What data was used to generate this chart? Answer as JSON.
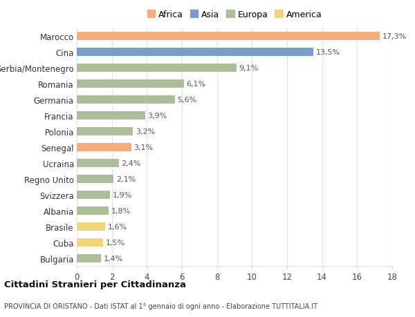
{
  "countries": [
    "Marocco",
    "Cina",
    "Serbia/Montenegro",
    "Romania",
    "Germania",
    "Francia",
    "Polonia",
    "Senegal",
    "Ucraina",
    "Regno Unito",
    "Svizzera",
    "Albania",
    "Brasile",
    "Cuba",
    "Bulgaria"
  ],
  "values": [
    17.3,
    13.5,
    9.1,
    6.1,
    5.6,
    3.9,
    3.2,
    3.1,
    2.4,
    2.1,
    1.9,
    1.8,
    1.6,
    1.5,
    1.4
  ],
  "labels": [
    "17,3%",
    "13,5%",
    "9,1%",
    "6,1%",
    "5,6%",
    "3,9%",
    "3,2%",
    "3,1%",
    "2,4%",
    "2,1%",
    "1,9%",
    "1,8%",
    "1,6%",
    "1,5%",
    "1,4%"
  ],
  "continents": [
    "Africa",
    "Asia",
    "Europa",
    "Europa",
    "Europa",
    "Europa",
    "Europa",
    "Africa",
    "Europa",
    "Europa",
    "Europa",
    "Europa",
    "America",
    "America",
    "Europa"
  ],
  "colors": {
    "Africa": "#F2AE7E",
    "Asia": "#7B9BC8",
    "Europa": "#ABBE98",
    "America": "#F2D47A"
  },
  "legend_order": [
    "Africa",
    "Asia",
    "Europa",
    "America"
  ],
  "legend_colors": [
    "#F2AE7E",
    "#7B9BC8",
    "#ABBE98",
    "#F2D47A"
  ],
  "title": "Cittadini Stranieri per Cittadinanza",
  "subtitle": "PROVINCIA DI ORISTANO - Dati ISTAT al 1° gennaio di ogni anno - Elaborazione TUTTITALIA.IT",
  "xlim": [
    0,
    18
  ],
  "xticks": [
    0,
    2,
    4,
    6,
    8,
    10,
    12,
    14,
    16,
    18
  ],
  "background_color": "#ffffff",
  "grid_color": "#e0e0e0",
  "bar_height": 0.55,
  "label_fontsize": 8.0,
  "ytick_fontsize": 8.5,
  "xtick_fontsize": 8.5
}
